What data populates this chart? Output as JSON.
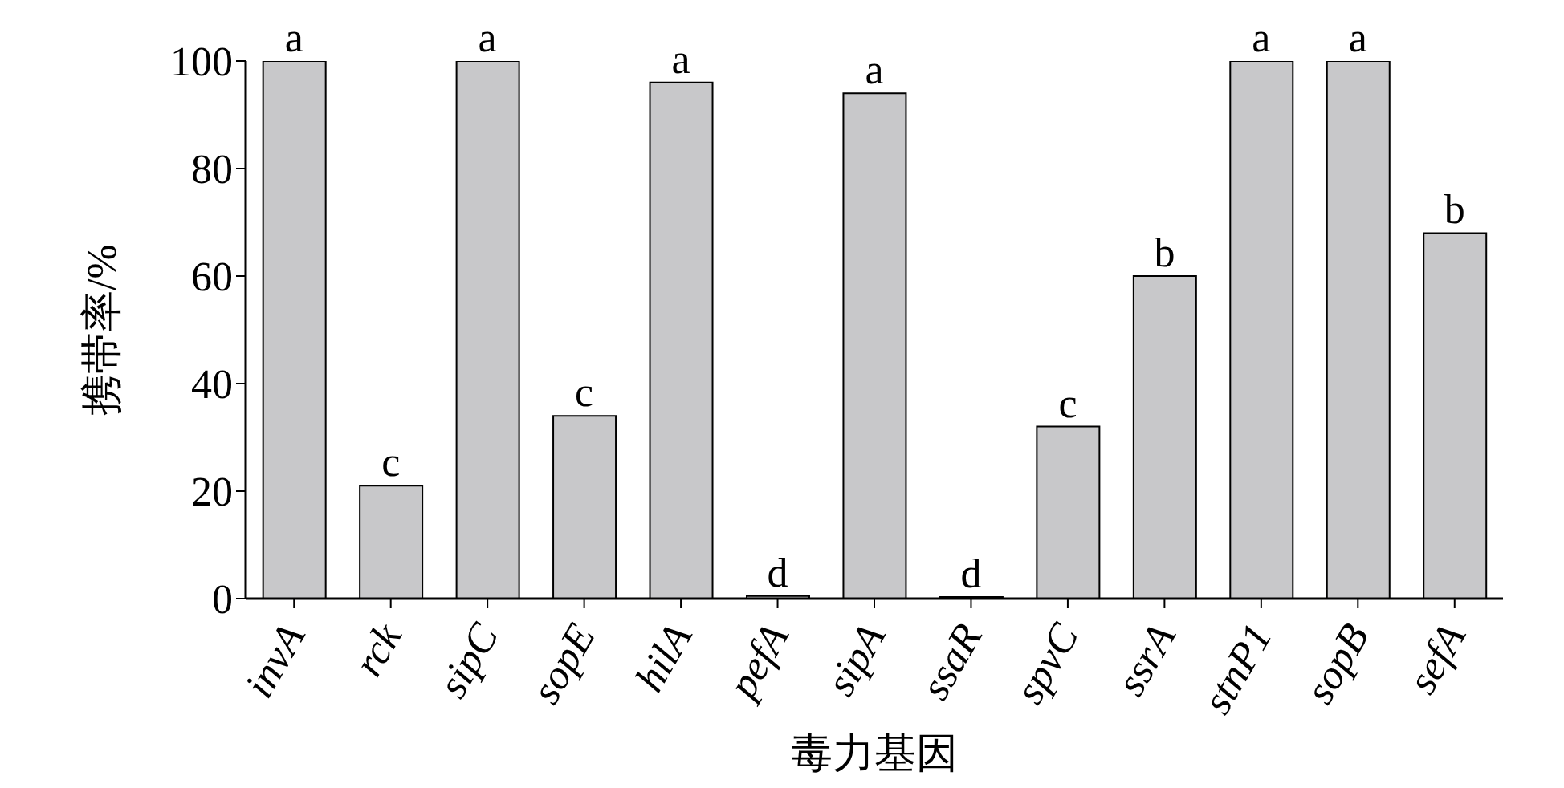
{
  "chart_data": {
    "type": "bar",
    "xlabel": "毒力基因",
    "ylabel": "携带率/%",
    "categories": [
      "invA",
      "rck",
      "sipC",
      "sopE",
      "hilA",
      "pefA",
      "sipA",
      "ssaR",
      "spvC",
      "ssrA",
      "stnP1",
      "sopB",
      "sefA"
    ],
    "values": [
      100,
      21,
      100,
      34,
      96,
      0.5,
      94,
      0.3,
      32,
      60,
      100,
      100,
      68
    ],
    "color": "#c8c8ca",
    "ylim": [
      0,
      100
    ],
    "yticks": [
      0,
      20,
      40,
      60,
      80,
      100
    ],
    "grid": false,
    "annotations": [
      {
        "text": "a",
        "x": "invA",
        "y": 100
      },
      {
        "text": "c",
        "x": "rck",
        "y": 21
      },
      {
        "text": "a",
        "x": "sipC",
        "y": 100
      },
      {
        "text": "c",
        "x": "sopE",
        "y": 34
      },
      {
        "text": "a",
        "x": "hilA",
        "y": 96
      },
      {
        "text": "d",
        "x": "pefA",
        "y": 0.5
      },
      {
        "text": "a",
        "x": "sipA",
        "y": 94
      },
      {
        "text": "d",
        "x": "ssaR",
        "y": 0.3
      },
      {
        "text": "c",
        "x": "spvC",
        "y": 32
      },
      {
        "text": "b",
        "x": "ssrA",
        "y": 60
      },
      {
        "text": "a",
        "x": "stnP1",
        "y": 100
      },
      {
        "text": "a",
        "x": "sopB",
        "y": 100
      },
      {
        "text": "b",
        "x": "sefA",
        "y": 68
      }
    ]
  }
}
